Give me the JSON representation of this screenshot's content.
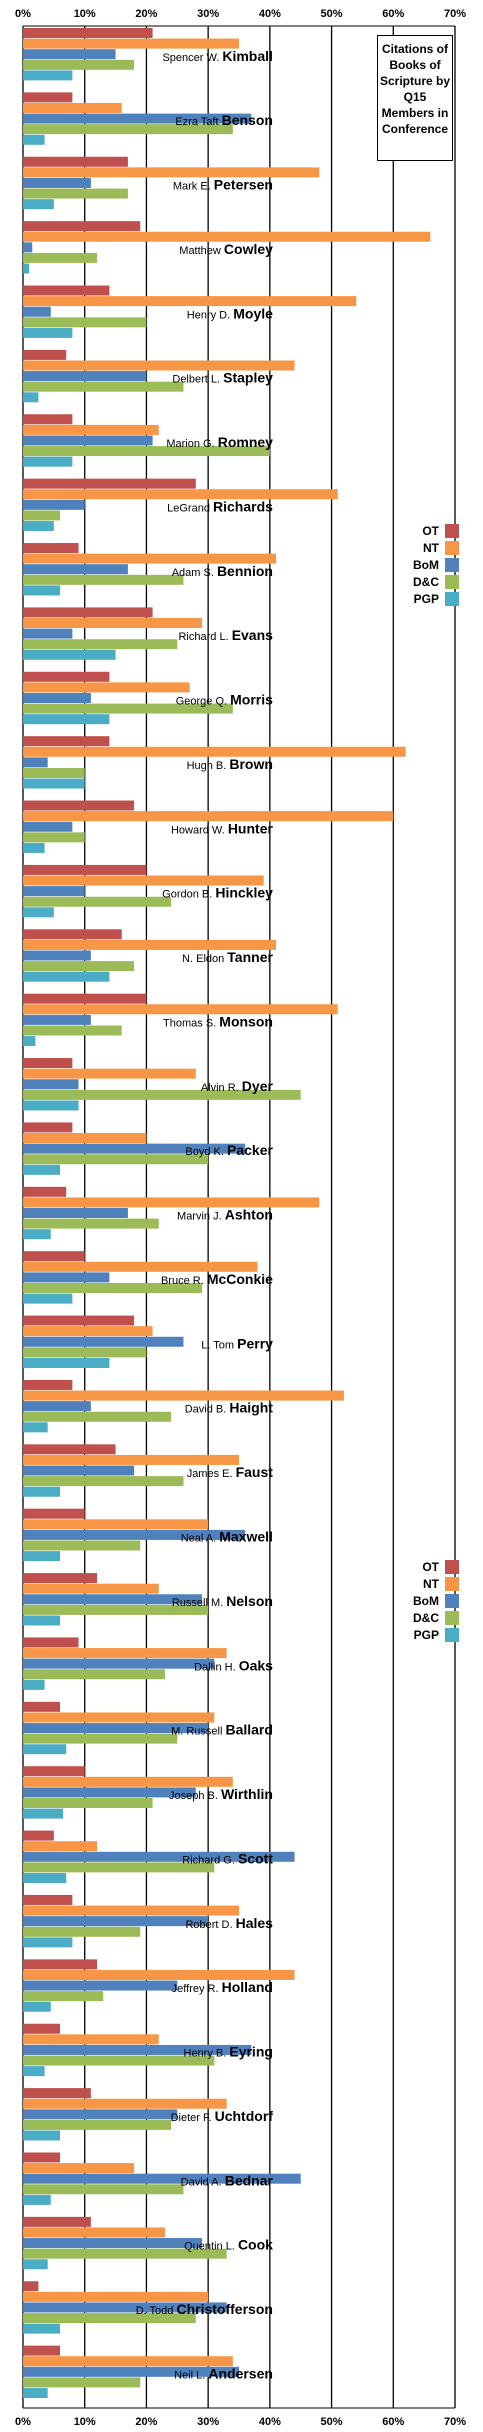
{
  "chart_data": {
    "type": "bar",
    "orientation": "horizontal",
    "title": "Citations of Books of Scripture by Q15 Members in Conference",
    "xlim": [
      0,
      0.7
    ],
    "xticks": [
      "0%",
      "10%",
      "20%",
      "30%",
      "40%",
      "50%",
      "60%",
      "70%"
    ],
    "grid": true,
    "legend_position": "right",
    "series": [
      {
        "name": "OT",
        "color": "#C0504D"
      },
      {
        "name": "NT",
        "color": "#F79646"
      },
      {
        "name": "BoM",
        "color": "#4F81BD"
      },
      {
        "name": "D&C",
        "color": "#9BBB59"
      },
      {
        "name": "PGP",
        "color": "#4BACC6"
      }
    ],
    "categories": [
      {
        "first": "Spencer W.",
        "last": "Kimball",
        "values": [
          0.21,
          0.35,
          0.15,
          0.18,
          0.08
        ]
      },
      {
        "first": "Ezra Taft",
        "last": "Benson",
        "values": [
          0.08,
          0.16,
          0.37,
          0.34,
          0.035
        ]
      },
      {
        "first": "Mark E.",
        "last": "Petersen",
        "values": [
          0.17,
          0.48,
          0.11,
          0.17,
          0.05
        ]
      },
      {
        "first": "Matthew",
        "last": "Cowley",
        "values": [
          0.19,
          0.66,
          0.015,
          0.12,
          0.01
        ]
      },
      {
        "first": "Henry D.",
        "last": "Moyle",
        "values": [
          0.14,
          0.54,
          0.045,
          0.2,
          0.08
        ]
      },
      {
        "first": "Delbert L.",
        "last": "Stapley",
        "values": [
          0.07,
          0.44,
          0.2,
          0.26,
          0.025
        ]
      },
      {
        "first": "Marion G.",
        "last": "Romney",
        "values": [
          0.08,
          0.22,
          0.21,
          0.4,
          0.08
        ]
      },
      {
        "first": "LeGrand",
        "last": "Richards",
        "values": [
          0.28,
          0.51,
          0.1,
          0.06,
          0.05
        ]
      },
      {
        "first": "Adam S.",
        "last": "Bennion",
        "values": [
          0.09,
          0.41,
          0.17,
          0.26,
          0.06
        ]
      },
      {
        "first": "Richard L.",
        "last": "Evans",
        "values": [
          0.21,
          0.29,
          0.08,
          0.25,
          0.15
        ]
      },
      {
        "first": "George Q.",
        "last": "Morris",
        "values": [
          0.14,
          0.27,
          0.11,
          0.34,
          0.14
        ]
      },
      {
        "first": "Hugh B.",
        "last": "Brown",
        "values": [
          0.14,
          0.62,
          0.04,
          0.1,
          0.1
        ]
      },
      {
        "first": "Howard W.",
        "last": "Hunter",
        "values": [
          0.18,
          0.6,
          0.08,
          0.1,
          0.035
        ]
      },
      {
        "first": "Gordon B.",
        "last": "Hinckley",
        "values": [
          0.2,
          0.39,
          0.1,
          0.24,
          0.05
        ]
      },
      {
        "first": "N. Eldon",
        "last": "Tanner",
        "values": [
          0.16,
          0.41,
          0.11,
          0.18,
          0.14
        ]
      },
      {
        "first": "Thomas S.",
        "last": "Monson",
        "values": [
          0.2,
          0.51,
          0.11,
          0.16,
          0.02
        ]
      },
      {
        "first": "Alvin R.",
        "last": "Dyer",
        "values": [
          0.08,
          0.28,
          0.09,
          0.45,
          0.09
        ]
      },
      {
        "first": "Boyd K.",
        "last": "Packer",
        "values": [
          0.08,
          0.2,
          0.36,
          0.3,
          0.06
        ]
      },
      {
        "first": "Marvin J.",
        "last": "Ashton",
        "values": [
          0.07,
          0.48,
          0.17,
          0.22,
          0.045
        ]
      },
      {
        "first": "Bruce R.",
        "last": "McConkie",
        "values": [
          0.1,
          0.38,
          0.14,
          0.29,
          0.08
        ]
      },
      {
        "first": "L. Tom",
        "last": "Perry",
        "values": [
          0.18,
          0.21,
          0.26,
          0.2,
          0.14
        ]
      },
      {
        "first": "David B.",
        "last": "Haight",
        "values": [
          0.08,
          0.52,
          0.11,
          0.24,
          0.04
        ]
      },
      {
        "first": "James E.",
        "last": "Faust",
        "values": [
          0.15,
          0.35,
          0.18,
          0.26,
          0.06
        ]
      },
      {
        "first": "Neal A.",
        "last": "Maxwell",
        "values": [
          0.1,
          0.3,
          0.36,
          0.19,
          0.06
        ]
      },
      {
        "first": "Russell M.",
        "last": "Nelson",
        "values": [
          0.12,
          0.22,
          0.29,
          0.3,
          0.06
        ]
      },
      {
        "first": "Dallin H.",
        "last": "Oaks",
        "values": [
          0.09,
          0.33,
          0.31,
          0.23,
          0.035
        ]
      },
      {
        "first": "M. Russell",
        "last": "Ballard",
        "values": [
          0.06,
          0.31,
          0.3,
          0.25,
          0.07
        ]
      },
      {
        "first": "Joseph B.",
        "last": "Wirthlin",
        "values": [
          0.1,
          0.34,
          0.28,
          0.21,
          0.065
        ]
      },
      {
        "first": "Richard G.",
        "last": "Scott",
        "values": [
          0.05,
          0.12,
          0.44,
          0.31,
          0.07
        ]
      },
      {
        "first": "Robert D.",
        "last": "Hales",
        "values": [
          0.08,
          0.35,
          0.3,
          0.19,
          0.08
        ]
      },
      {
        "first": "Jeffrey R.",
        "last": "Holland",
        "values": [
          0.12,
          0.44,
          0.25,
          0.13,
          0.045
        ]
      },
      {
        "first": "Henry B.",
        "last": "Eyring",
        "values": [
          0.06,
          0.22,
          0.37,
          0.31,
          0.035
        ]
      },
      {
        "first": "Dieter F.",
        "last": "Uchtdorf",
        "values": [
          0.11,
          0.33,
          0.25,
          0.24,
          0.06
        ]
      },
      {
        "first": "David A.",
        "last": "Bednar",
        "values": [
          0.06,
          0.18,
          0.45,
          0.26,
          0.045
        ]
      },
      {
        "first": "Quentin L.",
        "last": "Cook",
        "values": [
          0.11,
          0.23,
          0.29,
          0.33,
          0.04
        ]
      },
      {
        "first": "D. Todd",
        "last": "Christofferson",
        "values": [
          0.025,
          0.3,
          0.33,
          0.28,
          0.06
        ]
      },
      {
        "first": "Neil L.",
        "last": "Andersen",
        "values": [
          0.06,
          0.34,
          0.35,
          0.19,
          0.04
        ]
      }
    ]
  }
}
